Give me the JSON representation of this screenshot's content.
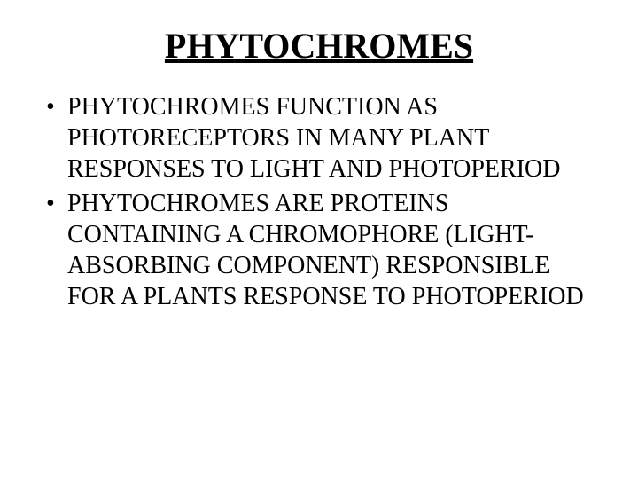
{
  "slide": {
    "title": "PHYTOCHROMES",
    "title_fontsize": 40,
    "body_fontsize": 28,
    "text_color": "#000000",
    "background_color": "#ffffff",
    "bullets": [
      "PHYTOCHROMES FUNCTION AS PHOTORECEPTORS IN MANY PLANT RESPONSES TO LIGHT AND PHOTOPERIOD",
      "PHYTOCHROMES ARE PROTEINS CONTAINING A CHROMOPHORE (LIGHT-ABSORBING COMPONENT) RESPONSIBLE FOR A PLANTS RESPONSE TO PHOTOPERIOD"
    ]
  }
}
